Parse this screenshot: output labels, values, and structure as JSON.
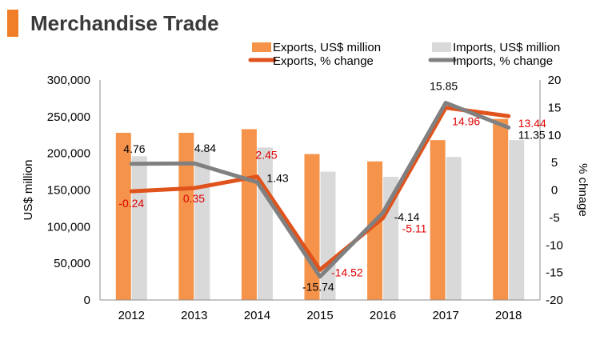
{
  "page": {
    "title": "Merchandise Trade",
    "accent_color": "#F07E26"
  },
  "chart_data": {
    "type": "bar",
    "categories": [
      "2012",
      "2013",
      "2014",
      "2015",
      "2016",
      "2017",
      "2018"
    ],
    "series": [
      {
        "name": "Exports, US$ million",
        "kind": "bar",
        "axis": "left",
        "color": "#F5934A",
        "values": [
          228000,
          228000,
          233000,
          199000,
          189000,
          218000,
          247000
        ]
      },
      {
        "name": "Imports, US$ million",
        "kind": "bar",
        "axis": "left",
        "color": "#D9D9D9",
        "values": [
          196000,
          205000,
          208000,
          175000,
          168000,
          195000,
          218000
        ]
      },
      {
        "name": "Exports, % change",
        "kind": "line",
        "axis": "right",
        "color": "#E0531C",
        "label_color": "#E00000",
        "values": [
          -0.24,
          0.35,
          2.45,
          -14.52,
          -5.11,
          14.96,
          13.44
        ]
      },
      {
        "name": "Imports, % change",
        "kind": "line",
        "axis": "right",
        "color": "#808080",
        "label_color": "#000000",
        "values": [
          4.76,
          4.84,
          1.43,
          -15.74,
          -4.14,
          15.85,
          11.35
        ]
      }
    ],
    "ylabel": "US$ million",
    "y2label": "% chnage",
    "ylim": [
      0,
      300000
    ],
    "y2lim": [
      -20,
      20
    ],
    "yticks": [
      "0",
      "50,000",
      "100,000",
      "150,000",
      "200,000",
      "250,000",
      "300,000"
    ],
    "y2ticks": [
      "-20",
      "-15",
      "-10",
      "-5",
      "0",
      "5",
      "10",
      "15",
      "20"
    ],
    "grid": false,
    "legend_position": "top"
  }
}
